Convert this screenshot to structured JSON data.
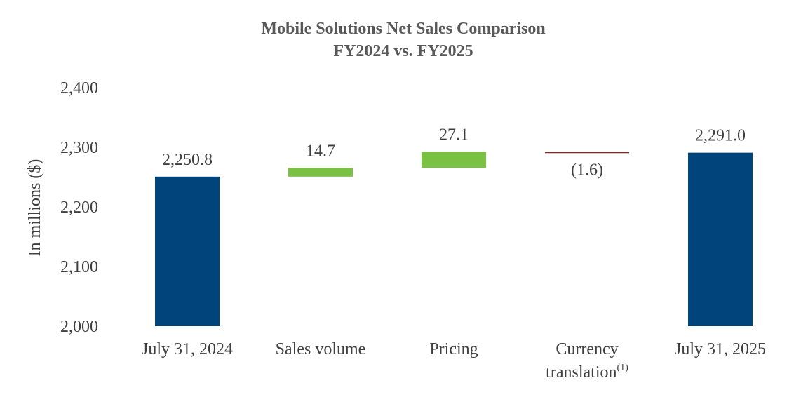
{
  "chart_data": {
    "type": "bar",
    "subtype": "waterfall",
    "title": "Mobile Solutions Net Sales Comparison",
    "subtitle": "FY2024 vs. FY2025",
    "ylabel": "In millions ($)",
    "xlabel": "",
    "ylim": [
      2000,
      2400
    ],
    "yticks": [
      2000,
      2100,
      2200,
      2300,
      2400
    ],
    "ytick_labels": [
      "2,000",
      "2,100",
      "2,200",
      "2,300",
      "2,400"
    ],
    "grid": false,
    "legend": "none",
    "categories": [
      "July 31, 2024",
      "Sales volume",
      "Pricing",
      "Currency translation",
      "July 31, 2025"
    ],
    "category_superscripts": [
      "",
      "",
      "",
      "(1)",
      ""
    ],
    "bars": [
      {
        "kind": "total",
        "start": 2000,
        "end": 2250.8,
        "label": "2,250.8",
        "color": "#00447C"
      },
      {
        "kind": "increase",
        "start": 2250.8,
        "end": 2265.5,
        "label": "14.7",
        "color": "#7AC143"
      },
      {
        "kind": "increase",
        "start": 2265.5,
        "end": 2292.6,
        "label": "27.1",
        "color": "#7AC143"
      },
      {
        "kind": "decrease",
        "start": 2292.6,
        "end": 2291.0,
        "label": "(1.6)",
        "color": "#7B2D26"
      },
      {
        "kind": "total",
        "start": 2000,
        "end": 2291.0,
        "label": "2,291.0",
        "color": "#00447C"
      }
    ]
  }
}
